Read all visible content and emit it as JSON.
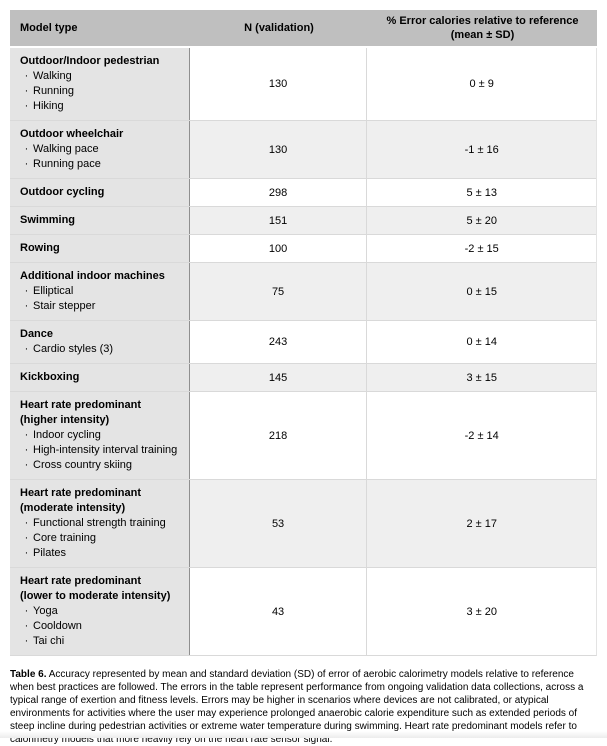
{
  "page": {
    "colors": {
      "header_bg": "#bfbfbf",
      "model_column_bg": "#e4e4e4",
      "zebra_row_bg": "#efefef",
      "divider_dark": "#8f8f8f",
      "divider_light": "#d9d9d9"
    }
  },
  "table": {
    "header": {
      "model_type": "Model type",
      "n_validation": "N (validation)",
      "error_line1": "% Error calories relative to reference",
      "error_line2": "(mean ± SD)"
    },
    "rows": [
      {
        "title": "Outdoor/Indoor pedestrian",
        "bullets": [
          "Walking",
          "Running",
          "Hiking"
        ],
        "n": "130",
        "error": "0 ± 9"
      },
      {
        "title": "Outdoor wheelchair",
        "bullets": [
          "Walking pace",
          "Running pace"
        ],
        "n": "130",
        "error": "-1 ± 16"
      },
      {
        "title": "Outdoor cycling",
        "bullets": [],
        "n": "298",
        "error": "5 ± 13"
      },
      {
        "title": "Swimming",
        "bullets": [],
        "n": "151",
        "error": "5 ± 20"
      },
      {
        "title": "Rowing",
        "bullets": [],
        "n": "100",
        "error": "-2 ± 15"
      },
      {
        "title": "Additional indoor machines",
        "bullets": [
          "Elliptical",
          "Stair stepper"
        ],
        "n": "75",
        "error": "0 ± 15"
      },
      {
        "title": "Dance",
        "bullets": [
          "Cardio styles (3)"
        ],
        "n": "243",
        "error": "0 ± 14"
      },
      {
        "title": "Kickboxing",
        "bullets": [],
        "n": "145",
        "error": "3 ± 15"
      },
      {
        "title": "Heart rate predominant",
        "title2": "(higher intensity)",
        "bullets": [
          "Indoor cycling",
          "High-intensity interval training",
          "Cross country skiing"
        ],
        "n": "218",
        "error": "-2 ± 14"
      },
      {
        "title": "Heart rate predominant",
        "title2": "(moderate intensity)",
        "bullets": [
          "Functional strength training",
          "Core training",
          "Pilates"
        ],
        "n": "53",
        "error": "2 ± 17"
      },
      {
        "title": "Heart rate predominant",
        "title2": "(lower to moderate intensity)",
        "bullets": [
          "Yoga",
          "Cooldown",
          "Tai chi"
        ],
        "n": "43",
        "error": "3 ± 20"
      }
    ]
  },
  "caption": {
    "label": "Table 6.",
    "text": " Accuracy represented by mean and standard deviation (SD) of error of aerobic calorimetry models relative to reference when best practices are followed. The errors in the table represent performance from ongoing validation data collections, across a typical range of exertion and fitness levels. Errors may be higher in scenarios where devices are not calibrated, or atypical environments for activities where the user may experience prolonged anaerobic calorie expenditure such as extended periods of steep incline during pedestrian activities or extreme water temperature during swimming. Heart rate predominant models refer to calorimetry models that more heavily rely on the heart rate sensor signal."
  }
}
